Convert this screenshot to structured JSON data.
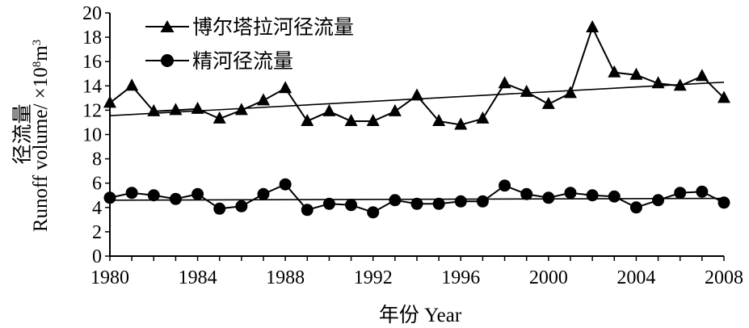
{
  "chart_data": {
    "type": "line",
    "x": [
      1980,
      1981,
      1982,
      1983,
      1984,
      1985,
      1986,
      1987,
      1988,
      1989,
      1990,
      1991,
      1992,
      1993,
      1994,
      1995,
      1996,
      1997,
      1998,
      1999,
      2000,
      2001,
      2002,
      2003,
      2004,
      2005,
      2006,
      2007,
      2008
    ],
    "series": [
      {
        "name": "博尔塔拉河径流量",
        "marker": "triangle",
        "color": "#000000",
        "values": [
          12.6,
          14.0,
          11.9,
          12.0,
          12.1,
          11.3,
          12.0,
          12.8,
          13.8,
          11.1,
          11.9,
          11.1,
          11.1,
          11.9,
          13.2,
          11.1,
          10.8,
          11.3,
          14.2,
          13.5,
          12.5,
          13.4,
          18.8,
          15.1,
          14.9,
          14.2,
          14.0,
          14.8,
          13.0
        ],
        "trend": [
          11.55,
          14.3
        ]
      },
      {
        "name": "精河径流量",
        "marker": "circle",
        "color": "#000000",
        "values": [
          4.8,
          5.2,
          5.0,
          4.7,
          5.1,
          3.9,
          4.1,
          5.1,
          5.9,
          3.8,
          4.3,
          4.2,
          3.6,
          4.6,
          4.3,
          4.3,
          4.5,
          4.5,
          5.8,
          5.1,
          4.8,
          5.2,
          5.0,
          4.9,
          4.0,
          4.6,
          5.2,
          5.3,
          4.4
        ],
        "trend": [
          4.6,
          4.75
        ]
      }
    ],
    "ylim": [
      0,
      20
    ],
    "xlim": [
      1980,
      2008
    ],
    "yticks": [
      "0",
      "2",
      "4",
      "6",
      "8",
      "10",
      "12",
      "14",
      "16",
      "18",
      "20"
    ],
    "xticks": [
      "1980",
      "1984",
      "1988",
      "1992",
      "1996",
      "2000",
      "2004",
      "2008"
    ],
    "ylabel_cn": "径流量",
    "ylabel_en": "Runoff volume/ ×10",
    "ylabel_exp": "8",
    "ylabel_unit": "m",
    "ylabel_unit_exp": "3",
    "xlabel": "年份  Year",
    "legend_position": "top-left",
    "grid": false
  }
}
